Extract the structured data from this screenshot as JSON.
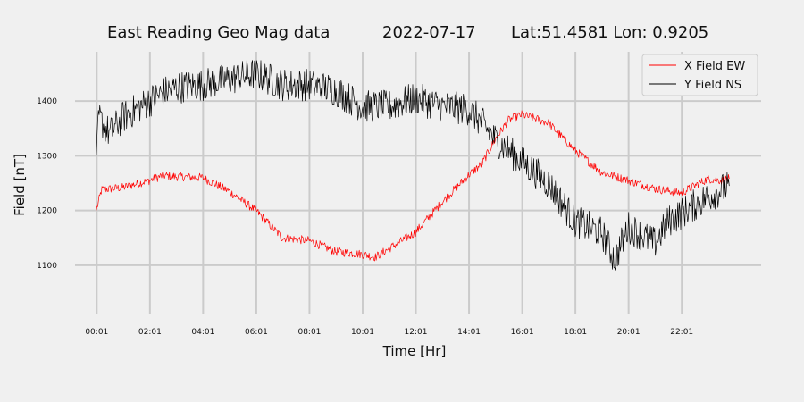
{
  "chart_data": {
    "type": "line",
    "title": {
      "name": "East Reading Geo Mag data",
      "date": "2022-07-17",
      "location": "Lat:51.4581  Lon: 0.9205"
    },
    "xlabel": "Time  [Hr]",
    "ylabel": "Field  [nT]",
    "x_unit": "hours",
    "xlim": [
      -0.8,
      25
    ],
    "ylim": [
      1010,
      1490
    ],
    "x_ticks": [
      {
        "x": 0.0167,
        "label": "00:01"
      },
      {
        "x": 2.0167,
        "label": "02:01"
      },
      {
        "x": 4.0167,
        "label": "04:01"
      },
      {
        "x": 6.0167,
        "label": "06:01"
      },
      {
        "x": 8.0167,
        "label": "08:01"
      },
      {
        "x": 10.0167,
        "label": "10:01"
      },
      {
        "x": 12.0167,
        "label": "12:01"
      },
      {
        "x": 14.0167,
        "label": "14:01"
      },
      {
        "x": 16.0167,
        "label": "16:01"
      },
      {
        "x": 18.0167,
        "label": "18:01"
      },
      {
        "x": 20.0167,
        "label": "20:01"
      },
      {
        "x": 22.0167,
        "label": "22:01"
      }
    ],
    "y_ticks": [
      {
        "y": 1100,
        "label": "1100"
      },
      {
        "y": 1200,
        "label": "1200"
      },
      {
        "y": 1300,
        "label": "1300"
      },
      {
        "y": 1400,
        "label": "1400"
      }
    ],
    "grid": true,
    "legend_position": "top-right",
    "series": [
      {
        "name": "X Field EW",
        "color": "#ff0000",
        "noise": 8,
        "x": [
          0,
          0.2,
          1,
          2,
          2.5,
          3,
          4,
          5,
          6,
          7,
          8,
          9,
          10,
          10.5,
          11,
          12,
          13,
          14,
          14.5,
          15,
          15.5,
          16,
          16.5,
          17,
          18,
          19,
          20,
          21,
          22,
          22.5,
          23,
          23.5,
          23.8
        ],
        "y": [
          1200,
          1238,
          1242,
          1255,
          1264,
          1262,
          1260,
          1235,
          1200,
          1150,
          1145,
          1125,
          1120,
          1115,
          1130,
          1160,
          1215,
          1265,
          1285,
          1330,
          1365,
          1375,
          1368,
          1360,
          1310,
          1270,
          1255,
          1240,
          1232,
          1245,
          1258,
          1255,
          1258
        ]
      },
      {
        "name": "Y Field NS",
        "color": "#000000",
        "noise": 30,
        "x": [
          0,
          0.1,
          0.5,
          1,
          2,
          2.5,
          3,
          4,
          5,
          6,
          7,
          8,
          9,
          10,
          11,
          12,
          13,
          14,
          14.5,
          15,
          16,
          17,
          17.5,
          18,
          19,
          19.5,
          20,
          21,
          21.5,
          22,
          23,
          23.8
        ],
        "y": [
          1300,
          1370,
          1340,
          1370,
          1400,
          1415,
          1425,
          1430,
          1440,
          1450,
          1430,
          1430,
          1420,
          1390,
          1390,
          1405,
          1390,
          1385,
          1360,
          1330,
          1290,
          1250,
          1215,
          1180,
          1160,
          1110,
          1170,
          1140,
          1180,
          1195,
          1225,
          1245
        ]
      }
    ]
  }
}
